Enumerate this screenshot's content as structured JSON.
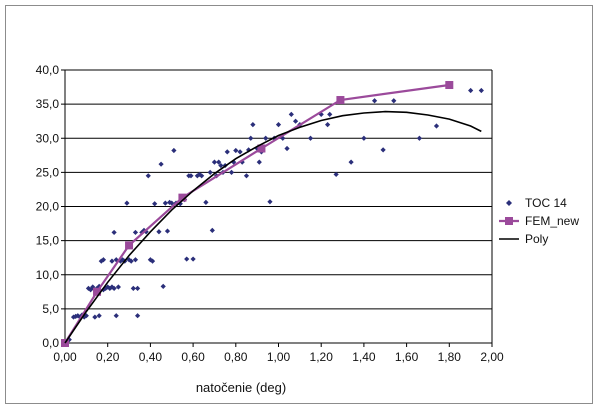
{
  "chart_data": {
    "type": "scatter",
    "title": "",
    "xlabel": "natočenie (deg)",
    "ylabel": "",
    "xlim": [
      0,
      2
    ],
    "ylim": [
      0,
      40
    ],
    "x_ticks": [
      "0,00",
      "0,20",
      "0,40",
      "0,60",
      "0,80",
      "1,00",
      "1,20",
      "1,40",
      "1,60",
      "1,80",
      "2,00"
    ],
    "y_ticks": [
      "0,0",
      "5,0",
      "10,0",
      "15,0",
      "20,0",
      "25,0",
      "30,0",
      "35,0",
      "40,0"
    ],
    "grid": "horizontal",
    "legend_position": "right",
    "series": [
      {
        "name": "TOC 14",
        "kind": "scatter",
        "color": "#2b2f7a",
        "points": [
          [
            0.0,
            0.0
          ],
          [
            0.02,
            0.5
          ],
          [
            0.04,
            3.8
          ],
          [
            0.05,
            3.9
          ],
          [
            0.06,
            4.0
          ],
          [
            0.07,
            3.8
          ],
          [
            0.08,
            4.1
          ],
          [
            0.09,
            3.8
          ],
          [
            0.1,
            4.0
          ],
          [
            0.11,
            8.0
          ],
          [
            0.12,
            7.8
          ],
          [
            0.13,
            8.2
          ],
          [
            0.14,
            3.8
          ],
          [
            0.15,
            7.5
          ],
          [
            0.15,
            8.0
          ],
          [
            0.16,
            8.3
          ],
          [
            0.16,
            4.0
          ],
          [
            0.17,
            12.0
          ],
          [
            0.18,
            12.2
          ],
          [
            0.18,
            7.8
          ],
          [
            0.19,
            8.0
          ],
          [
            0.2,
            8.2
          ],
          [
            0.21,
            8.0
          ],
          [
            0.22,
            12.0
          ],
          [
            0.22,
            8.2
          ],
          [
            0.23,
            16.2
          ],
          [
            0.23,
            8.0
          ],
          [
            0.24,
            4.0
          ],
          [
            0.24,
            12.2
          ],
          [
            0.25,
            8.2
          ],
          [
            0.26,
            12.0
          ],
          [
            0.27,
            12.2
          ],
          [
            0.28,
            12.0
          ],
          [
            0.29,
            20.5
          ],
          [
            0.3,
            12.2
          ],
          [
            0.31,
            12.0
          ],
          [
            0.32,
            8.0
          ],
          [
            0.33,
            16.2
          ],
          [
            0.33,
            12.2
          ],
          [
            0.34,
            8.0
          ],
          [
            0.34,
            4.0
          ],
          [
            0.36,
            16.2
          ],
          [
            0.37,
            16.5
          ],
          [
            0.38,
            16.3
          ],
          [
            0.39,
            24.5
          ],
          [
            0.4,
            12.2
          ],
          [
            0.41,
            12.0
          ],
          [
            0.42,
            20.4
          ],
          [
            0.44,
            16.3
          ],
          [
            0.45,
            26.2
          ],
          [
            0.46,
            8.3
          ],
          [
            0.47,
            20.5
          ],
          [
            0.48,
            16.4
          ],
          [
            0.49,
            20.6
          ],
          [
            0.5,
            20.5
          ],
          [
            0.51,
            28.2
          ],
          [
            0.52,
            20.5
          ],
          [
            0.54,
            20.4
          ],
          [
            0.56,
            21.0
          ],
          [
            0.57,
            12.3
          ],
          [
            0.58,
            24.5
          ],
          [
            0.59,
            24.5
          ],
          [
            0.6,
            12.3
          ],
          [
            0.62,
            24.5
          ],
          [
            0.63,
            24.7
          ],
          [
            0.64,
            24.5
          ],
          [
            0.66,
            20.6
          ],
          [
            0.68,
            25.0
          ],
          [
            0.69,
            16.5
          ],
          [
            0.7,
            26.5
          ],
          [
            0.71,
            24.5
          ],
          [
            0.72,
            26.5
          ],
          [
            0.73,
            26.0
          ],
          [
            0.74,
            25.0
          ],
          [
            0.75,
            26.0
          ],
          [
            0.76,
            28.0
          ],
          [
            0.78,
            25.0
          ],
          [
            0.79,
            26.5
          ],
          [
            0.8,
            28.2
          ],
          [
            0.82,
            28.0
          ],
          [
            0.83,
            26.5
          ],
          [
            0.85,
            24.5
          ],
          [
            0.86,
            28.3
          ],
          [
            0.87,
            30.0
          ],
          [
            0.88,
            32.0
          ],
          [
            0.9,
            28.5
          ],
          [
            0.91,
            26.5
          ],
          [
            0.92,
            28.0
          ],
          [
            0.94,
            30.0
          ],
          [
            0.96,
            20.7
          ],
          [
            0.98,
            30.0
          ],
          [
            1.0,
            32.0
          ],
          [
            1.02,
            30.0
          ],
          [
            1.04,
            28.5
          ],
          [
            1.06,
            33.5
          ],
          [
            1.08,
            32.5
          ],
          [
            1.1,
            32.0
          ],
          [
            1.15,
            30.0
          ],
          [
            1.2,
            33.5
          ],
          [
            1.23,
            32.0
          ],
          [
            1.24,
            33.5
          ],
          [
            1.27,
            24.7
          ],
          [
            1.34,
            26.5
          ],
          [
            1.4,
            30.0
          ],
          [
            1.45,
            35.5
          ],
          [
            1.49,
            28.3
          ],
          [
            1.54,
            35.5
          ],
          [
            1.66,
            30.0
          ],
          [
            1.74,
            31.8
          ],
          [
            1.9,
            37.0
          ],
          [
            1.95,
            37.0
          ]
        ]
      },
      {
        "name": "FEM_new",
        "kind": "line-markers",
        "color": "#9b4a9b",
        "points": [
          [
            0.0,
            0.0
          ],
          [
            0.15,
            7.5
          ],
          [
            0.3,
            14.3
          ],
          [
            0.55,
            21.3
          ],
          [
            0.92,
            28.5
          ],
          [
            1.29,
            35.6
          ],
          [
            1.8,
            37.8
          ]
        ]
      },
      {
        "name": "Poly",
        "kind": "line",
        "color": "#000000",
        "points": [
          [
            0.0,
            0.0
          ],
          [
            0.1,
            4.6
          ],
          [
            0.2,
            8.9
          ],
          [
            0.3,
            12.8
          ],
          [
            0.4,
            16.3
          ],
          [
            0.5,
            19.5
          ],
          [
            0.6,
            22.3
          ],
          [
            0.7,
            24.8
          ],
          [
            0.8,
            27.0
          ],
          [
            0.9,
            28.8
          ],
          [
            1.0,
            30.4
          ],
          [
            1.1,
            31.6
          ],
          [
            1.2,
            32.6
          ],
          [
            1.3,
            33.3
          ],
          [
            1.4,
            33.7
          ],
          [
            1.5,
            33.9
          ],
          [
            1.6,
            33.8
          ],
          [
            1.7,
            33.4
          ],
          [
            1.8,
            32.8
          ],
          [
            1.9,
            31.8
          ],
          [
            1.95,
            31.0
          ]
        ]
      }
    ]
  }
}
